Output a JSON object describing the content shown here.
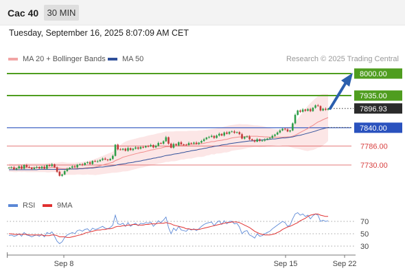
{
  "header": {
    "symbol": "Cac 40",
    "timeframe": "30 MIN"
  },
  "timestamp": "Tuesday, September 16, 2025 8:07:09 AM CET",
  "legend": {
    "ma_label": "MA 20 + Bollinger Bands",
    "ma50_label": "MA 50",
    "credit": "Research © 2025 Trading Central",
    "rsi_label": "RSI",
    "rsi_ma_label": "9MA"
  },
  "colors": {
    "resistance": "#4f9d1f",
    "support_line": "#2a52be",
    "support_red": "#d84040",
    "arrow": "#2b5fae",
    "ma20": "#f08a8a",
    "ma50": "#2f4f9a",
    "band_fill": "#fbdede",
    "rsi": "#5b88d6",
    "rsi_ma": "#e03030"
  },
  "chart_data": [
    {
      "type": "candlestick",
      "x_axis": {
        "ticks": [
          "Sep 8",
          "Sep 15",
          "Sep 22"
        ]
      },
      "ylim": [
        7680,
        8040
      ],
      "levels": [
        {
          "value": 8000.0,
          "label": "8000.00",
          "kind": "target"
        },
        {
          "value": 7935.0,
          "label": "7935.00",
          "kind": "resistance"
        },
        {
          "value": 7896.93,
          "label": "7896.93",
          "kind": "last"
        },
        {
          "value": 7840.0,
          "label": "7840.00",
          "kind": "pivot"
        },
        {
          "value": 7786.0,
          "label": "7786.00",
          "kind": "support"
        },
        {
          "value": 7730.0,
          "label": "7730.00",
          "kind": "support"
        }
      ],
      "forecast_arrow": {
        "from": 7896.93,
        "to": 8000.0
      },
      "close": [
        7722,
        7723,
        7717,
        7720,
        7726,
        7719,
        7730,
        7724,
        7722,
        7718,
        7722,
        7724,
        7720,
        7725,
        7719,
        7730,
        7727,
        7732,
        7723,
        7710,
        7698,
        7702,
        7712,
        7718,
        7722,
        7726,
        7723,
        7731,
        7732,
        7730,
        7736,
        7738,
        7733,
        7742,
        7740,
        7741,
        7745,
        7749,
        7746,
        7744,
        7748,
        7757,
        7790,
        7776,
        7775,
        7778,
        7772,
        7780,
        7774,
        7778,
        7782,
        7778,
        7783,
        7782,
        7786,
        7785,
        7789,
        7782,
        7787,
        7795,
        7793,
        7800,
        7812,
        7793,
        7781,
        7792,
        7788,
        7797,
        7791,
        7790,
        7789,
        7795,
        7793,
        7796,
        7792,
        7796,
        7801,
        7806,
        7811,
        7813,
        7816,
        7810,
        7817,
        7822,
        7817,
        7826,
        7822,
        7828,
        7829,
        7825,
        7827,
        7821,
        7808,
        7813,
        7814,
        7806,
        7803,
        7799,
        7806,
        7801,
        7802,
        7805,
        7808,
        7810,
        7816,
        7820,
        7826,
        7832,
        7837,
        7835,
        7829,
        7832,
        7853,
        7878,
        7891,
        7887,
        7894,
        7890,
        7895,
        7889,
        7899,
        7906,
        7904,
        7891,
        7896,
        7893,
        7896
      ],
      "ma20": [
        7722,
        7722,
        7721,
        7721,
        7722,
        7721,
        7722,
        7722,
        7722,
        7722,
        7722,
        7722,
        7722,
        7722,
        7722,
        7722,
        7722,
        7723,
        7723,
        7722,
        7720,
        7719,
        7719,
        7719,
        7719,
        7719,
        7719,
        7720,
        7720,
        7720,
        7721,
        7722,
        7722,
        7723,
        7724,
        7726,
        7728,
        7730,
        7732,
        7734,
        7736,
        7738,
        7743,
        7746,
        7749,
        7753,
        7755,
        7757,
        7759,
        7761,
        7763,
        7765,
        7767,
        7768,
        7770,
        7772,
        7774,
        7775,
        7777,
        7779,
        7780,
        7782,
        7784,
        7784,
        7785,
        7785,
        7786,
        7787,
        7788,
        7788,
        7789,
        7790,
        7790,
        7791,
        7792,
        7793,
        7793,
        7794,
        7796,
        7797,
        7799,
        7799,
        7801,
        7802,
        7803,
        7805,
        7806,
        7808,
        7810,
        7811,
        7812,
        7813,
        7813,
        7814,
        7815,
        7815,
        7815,
        7815,
        7815,
        7814,
        7814,
        7813,
        7813,
        7812,
        7812,
        7812,
        7812,
        7812,
        7812,
        7813,
        7813,
        7813,
        7815,
        7818,
        7822,
        7826,
        7830,
        7834,
        7838,
        7843,
        7847,
        7852,
        7857,
        7860,
        7864,
        7867,
        7870
      ],
      "ma50": [
        7716,
        7716,
        7716,
        7716,
        7716,
        7716,
        7716,
        7716,
        7716,
        7716,
        7716,
        7716,
        7717,
        7717,
        7717,
        7717,
        7717,
        7717,
        7717,
        7717,
        7717,
        7717,
        7717,
        7717,
        7718,
        7718,
        7718,
        7718,
        7719,
        7719,
        7720,
        7720,
        7721,
        7721,
        7722,
        7723,
        7724,
        7724,
        7725,
        7726,
        7727,
        7728,
        7729,
        7731,
        7732,
        7733,
        7734,
        7736,
        7737,
        7738,
        7740,
        7741,
        7742,
        7744,
        7745,
        7747,
        7748,
        7750,
        7751,
        7753,
        7754,
        7756,
        7758,
        7759,
        7760,
        7762,
        7763,
        7764,
        7766,
        7767,
        7769,
        7770,
        7772,
        7773,
        7774,
        7776,
        7777,
        7779,
        7780,
        7782,
        7783,
        7785,
        7786,
        7787,
        7789,
        7790,
        7791,
        7793,
        7794,
        7795,
        7796,
        7797,
        7798,
        7799,
        7800,
        7801,
        7801,
        7802,
        7803,
        7803,
        7804,
        7805,
        7805,
        7806,
        7807,
        7807,
        7808,
        7809,
        7810,
        7810,
        7811,
        7812,
        7813,
        7815,
        7817,
        7818,
        7820,
        7822,
        7824,
        7826,
        7828,
        7830,
        7833,
        7835,
        7837,
        7839,
        7841
      ],
      "bb_upper": [
        7734,
        7734,
        7733,
        7733,
        7734,
        7733,
        7734,
        7735,
        7735,
        7735,
        7735,
        7735,
        7735,
        7735,
        7735,
        7736,
        7736,
        7737,
        7737,
        7737,
        7738,
        7739,
        7738,
        7737,
        7737,
        7737,
        7737,
        7738,
        7738,
        7739,
        7741,
        7742,
        7743,
        7745,
        7748,
        7751,
        7754,
        7757,
        7760,
        7763,
        7766,
        7769,
        7779,
        7784,
        7789,
        7795,
        7799,
        7802,
        7804,
        7806,
        7808,
        7810,
        7812,
        7813,
        7815,
        7817,
        7819,
        7820,
        7822,
        7824,
        7825,
        7827,
        7829,
        7829,
        7829,
        7829,
        7830,
        7830,
        7830,
        7830,
        7830,
        7831,
        7831,
        7831,
        7831,
        7832,
        7832,
        7833,
        7834,
        7835,
        7836,
        7837,
        7838,
        7840,
        7841,
        7843,
        7845,
        7847,
        7848,
        7849,
        7850,
        7851,
        7850,
        7850,
        7850,
        7849,
        7848,
        7847,
        7847,
        7846,
        7845,
        7843,
        7841,
        7839,
        7837,
        7836,
        7835,
        7835,
        7837,
        7839,
        7840,
        7843,
        7849,
        7857,
        7866,
        7876,
        7886,
        7896,
        7905,
        7913,
        7920,
        7927,
        7933,
        7938,
        7940,
        7940,
        7939
      ],
      "bb_lower": [
        7710,
        7710,
        7709,
        7709,
        7710,
        7709,
        7710,
        7709,
        7709,
        7709,
        7709,
        7709,
        7709,
        7709,
        7709,
        7708,
        7708,
        7709,
        7709,
        7707,
        7702,
        7699,
        7700,
        7701,
        7701,
        7701,
        7701,
        7702,
        7702,
        7701,
        7701,
        7702,
        7701,
        7701,
        7700,
        7701,
        7702,
        7703,
        7704,
        7705,
        7706,
        7707,
        7707,
        7708,
        7709,
        7711,
        7711,
        7712,
        7714,
        7716,
        7718,
        7720,
        7722,
        7723,
        7725,
        7727,
        7729,
        7730,
        7732,
        7734,
        7735,
        7737,
        7739,
        7739,
        7741,
        7741,
        7742,
        7744,
        7746,
        7746,
        7748,
        7749,
        7749,
        7751,
        7753,
        7754,
        7754,
        7755,
        7758,
        7759,
        7762,
        7761,
        7764,
        7764,
        7765,
        7767,
        7767,
        7769,
        7772,
        7773,
        7774,
        7775,
        7776,
        7778,
        7780,
        7781,
        7782,
        7783,
        7783,
        7782,
        7783,
        7783,
        7785,
        7785,
        7787,
        7788,
        7789,
        7789,
        7787,
        7787,
        7786,
        7783,
        7781,
        7779,
        7778,
        7776,
        7774,
        7772,
        7771,
        7773,
        7774,
        7777,
        7781,
        7782,
        7788,
        7794,
        7801
      ]
    },
    {
      "type": "line",
      "name": "RSI",
      "ylim": [
        20,
        80
      ],
      "y_ticks": [
        70,
        50,
        30
      ],
      "rsi": [
        47,
        48,
        46,
        47,
        50,
        46,
        52,
        48,
        47,
        45,
        47,
        48,
        46,
        49,
        45,
        52,
        50,
        53,
        46,
        38,
        34,
        37,
        44,
        48,
        50,
        52,
        50,
        55,
        56,
        54,
        57,
        58,
        54,
        59,
        57,
        58,
        60,
        62,
        59,
        58,
        60,
        64,
        80,
        66,
        65,
        67,
        62,
        68,
        62,
        65,
        67,
        63,
        67,
        66,
        68,
        67,
        69,
        62,
        66,
        71,
        68,
        72,
        77,
        60,
        50,
        59,
        55,
        62,
        56,
        55,
        54,
        58,
        56,
        58,
        55,
        58,
        62,
        65,
        67,
        68,
        69,
        63,
        68,
        71,
        65,
        71,
        66,
        70,
        70,
        66,
        67,
        61,
        50,
        54,
        55,
        48,
        46,
        43,
        50,
        46,
        47,
        50,
        52,
        54,
        58,
        61,
        64,
        67,
        70,
        68,
        62,
        64,
        74,
        82,
        84,
        80,
        82,
        78,
        80,
        74,
        79,
        82,
        80,
        70,
        72,
        70,
        71
      ],
      "rsi_9ma": [
        50,
        50,
        49,
        49,
        49,
        49,
        49,
        49,
        48,
        48,
        48,
        48,
        48,
        48,
        47,
        47,
        47,
        48,
        48,
        47,
        45,
        45,
        45,
        44,
        44,
        45,
        46,
        47,
        48,
        49,
        51,
        52,
        53,
        54,
        55,
        56,
        56,
        57,
        57,
        58,
        58,
        59,
        61,
        62,
        62,
        63,
        63,
        64,
        64,
        65,
        65,
        64,
        64,
        64,
        65,
        65,
        66,
        66,
        66,
        67,
        67,
        67,
        68,
        67,
        66,
        64,
        63,
        62,
        61,
        60,
        58,
        58,
        57,
        57,
        57,
        57,
        58,
        59,
        60,
        61,
        62,
        63,
        64,
        65,
        66,
        67,
        68,
        68,
        69,
        69,
        69,
        68,
        66,
        64,
        62,
        60,
        57,
        54,
        52,
        50,
        49,
        48,
        48,
        48,
        49,
        50,
        52,
        54,
        57,
        59,
        61,
        62,
        64,
        66,
        68,
        71,
        73,
        75,
        78,
        80,
        81,
        82,
        82,
        80,
        79,
        78,
        78
      ]
    }
  ]
}
